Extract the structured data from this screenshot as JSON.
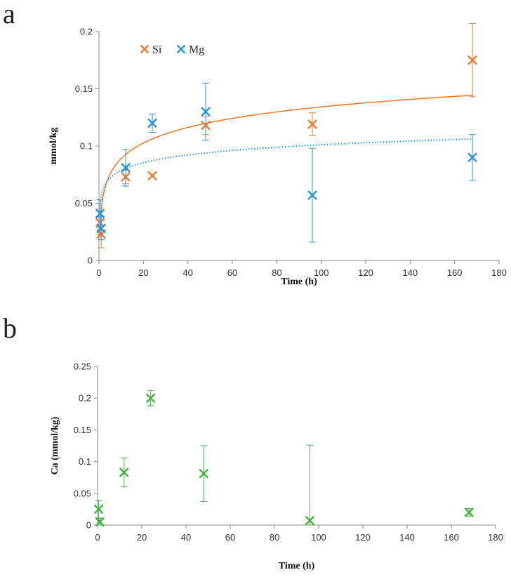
{
  "colors": {
    "Si": "#ED7D31",
    "Mg": "#2E95D3",
    "Ca": "#4CB04A",
    "axis": "#888888"
  },
  "chart_data": [
    {
      "panel_letter": "a",
      "type": "scatter",
      "xlabel": "Time (h)",
      "ylabel": "mmol/kg",
      "xlim": [
        0,
        180
      ],
      "ylim": [
        0,
        0.2
      ],
      "xticks": [
        0,
        20,
        40,
        60,
        80,
        100,
        120,
        140,
        160,
        180
      ],
      "yticks": [
        0,
        0.05,
        0.1,
        0.15,
        0.2
      ],
      "ytick_labels": [
        "0",
        "0.05",
        "0.1",
        "0.15",
        "0.2"
      ],
      "grid": false,
      "legend": "top-left",
      "series": [
        {
          "name": "Si",
          "color": "#ED7D31",
          "marker": "x",
          "x": [
            0.5,
            1,
            12,
            24,
            48,
            96,
            168
          ],
          "y": [
            0.033,
            0.023,
            0.073,
            0.074,
            0.118,
            0.119,
            0.175
          ],
          "err": [
            0.01,
            0.012,
            0.006,
            0.0,
            0.008,
            0.01,
            0.032
          ],
          "trend": {
            "type": "log",
            "style": "solid",
            "a": 0.0196,
            "b": 0.0439,
            "x_range": [
              0.3,
              168
            ]
          }
        },
        {
          "name": "Mg",
          "color": "#2E95D3",
          "marker": "x",
          "x": [
            0.5,
            1,
            12,
            24,
            48,
            96,
            168
          ],
          "y": [
            0.041,
            0.028,
            0.081,
            0.12,
            0.13,
            0.057,
            0.09
          ],
          "err": [
            0.012,
            0.01,
            0.016,
            0.008,
            0.025,
            0.041,
            0.02
          ],
          "trend": {
            "type": "log",
            "style": "dotted",
            "a": 0.0097,
            "b": 0.0564,
            "x_range": [
              0.3,
              168
            ]
          }
        }
      ]
    },
    {
      "panel_letter": "b",
      "type": "scatter",
      "xlabel": "Time (h)",
      "ylabel": "Ca (mmol/kg)",
      "xlim": [
        0,
        180
      ],
      "ylim": [
        0,
        0.25
      ],
      "xticks": [
        0,
        20,
        40,
        60,
        80,
        100,
        120,
        140,
        160,
        180
      ],
      "yticks": [
        0,
        0.05,
        0.1,
        0.15,
        0.2,
        0.25
      ],
      "ytick_labels": [
        "0",
        "0.05",
        "0.1",
        "0.15",
        "0.2",
        "0.25"
      ],
      "grid": false,
      "series": [
        {
          "color": "#4CB04A",
          "marker": "x",
          "x": [
            0.5,
            1,
            12,
            24,
            48,
            96,
            168
          ],
          "y": [
            0.025,
            0.005,
            0.083,
            0.2,
            0.081,
            0.007,
            0.02
          ],
          "err": [
            0.014,
            0.005,
            0.023,
            0.012,
            0.044,
            0.119,
            0.006
          ]
        }
      ]
    }
  ]
}
